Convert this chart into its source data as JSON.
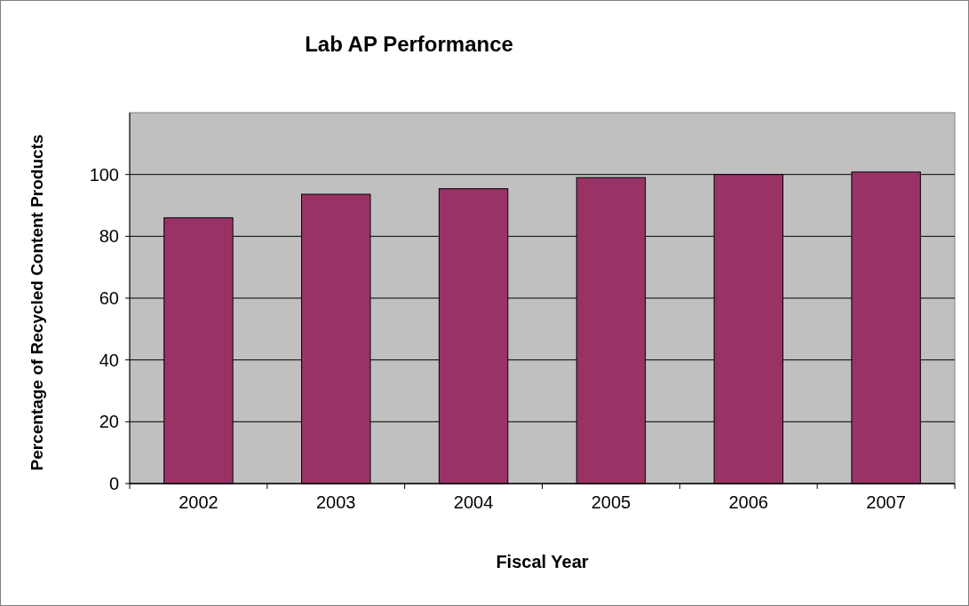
{
  "chart_data": {
    "type": "bar",
    "title": "Lab AP Performance",
    "xlabel": "Fiscal Year",
    "ylabel": "Percentage of Recycled Content Products",
    "categories": [
      "2002",
      "2003",
      "2004",
      "2005",
      "2006",
      "2007"
    ],
    "values": [
      86,
      93.6,
      95.4,
      99,
      100,
      100.8
    ],
    "color": "#993366",
    "ylim": [
      0,
      120
    ],
    "yticks": [
      0,
      20,
      40,
      60,
      80,
      100
    ],
    "grid": "y"
  }
}
